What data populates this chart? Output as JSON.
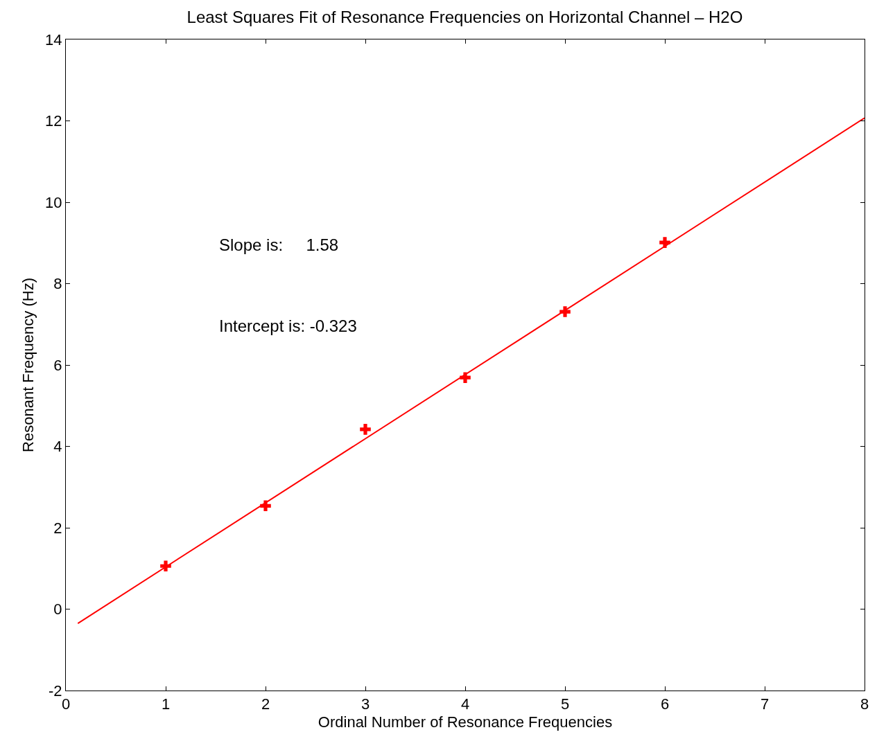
{
  "chart_data": {
    "type": "scatter",
    "title": "Least Squares Fit of Resonance Frequencies on Horizontal Channel – H2O",
    "xlabel": "Ordinal Number of Resonance Frequencies",
    "ylabel": "Resonant Frequency (Hz)",
    "series": [
      {
        "marker": "cross",
        "color": "#ff0000",
        "x": [
          1,
          2,
          3,
          4,
          5,
          6
        ],
        "values": [
          1.06,
          2.54,
          4.42,
          5.69,
          7.31,
          9.01
        ]
      },
      {
        "type": "line",
        "marker": "none",
        "color": "#ff0000",
        "x": [
          0.12,
          8
        ],
        "values": [
          -0.35,
          12.07
        ]
      }
    ],
    "annotations": [
      "Slope is:     1.58",
      "Intercept is: -0.323"
    ],
    "xlim": [
      0,
      8
    ],
    "xticks": [
      0,
      1,
      2,
      3,
      4,
      5,
      6,
      7,
      8
    ],
    "ylim": [
      -2,
      14
    ],
    "yticks": [
      -2,
      0,
      2,
      4,
      6,
      8,
      10,
      12,
      14
    ]
  }
}
